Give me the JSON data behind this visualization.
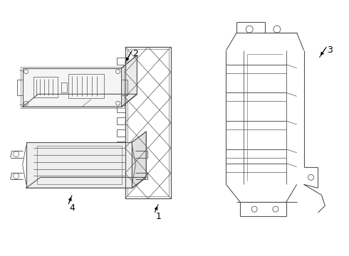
{
  "bg_color": "#ffffff",
  "line_color": "#555555",
  "label_color": "#000000",
  "lw": 0.7
}
